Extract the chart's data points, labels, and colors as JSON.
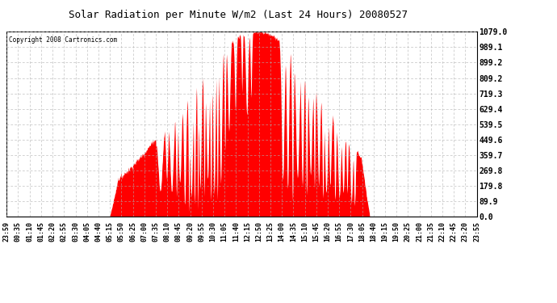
{
  "title": "Solar Radiation per Minute W/m2 (Last 24 Hours) 20080527",
  "copyright": "Copyright 2008 Cartronics.com",
  "ymax": 1079.0,
  "ymin": 0.0,
  "yticks": [
    0.0,
    89.9,
    179.8,
    269.8,
    359.7,
    449.6,
    539.5,
    629.4,
    719.3,
    809.2,
    899.2,
    989.1,
    1079.0
  ],
  "fill_color": "#ff0000",
  "background_color": "#ffffff",
  "plot_bg_color": "#ffffff",
  "grid_color": "#b0b0b0",
  "dashed_line_color": "#ff0000",
  "title_color": "#000000",
  "copyright_color": "#000000",
  "xtick_labels": [
    "23:59",
    "00:35",
    "01:10",
    "01:45",
    "02:20",
    "02:55",
    "03:30",
    "04:05",
    "04:40",
    "05:15",
    "05:50",
    "06:25",
    "07:00",
    "07:35",
    "08:10",
    "08:45",
    "09:20",
    "09:55",
    "10:30",
    "11:05",
    "11:40",
    "12:15",
    "12:50",
    "13:25",
    "14:00",
    "14:35",
    "15:10",
    "15:45",
    "16:20",
    "16:55",
    "17:30",
    "18:05",
    "18:40",
    "19:15",
    "19:50",
    "20:25",
    "21:00",
    "21:35",
    "22:10",
    "22:45",
    "23:20",
    "23:55"
  ]
}
